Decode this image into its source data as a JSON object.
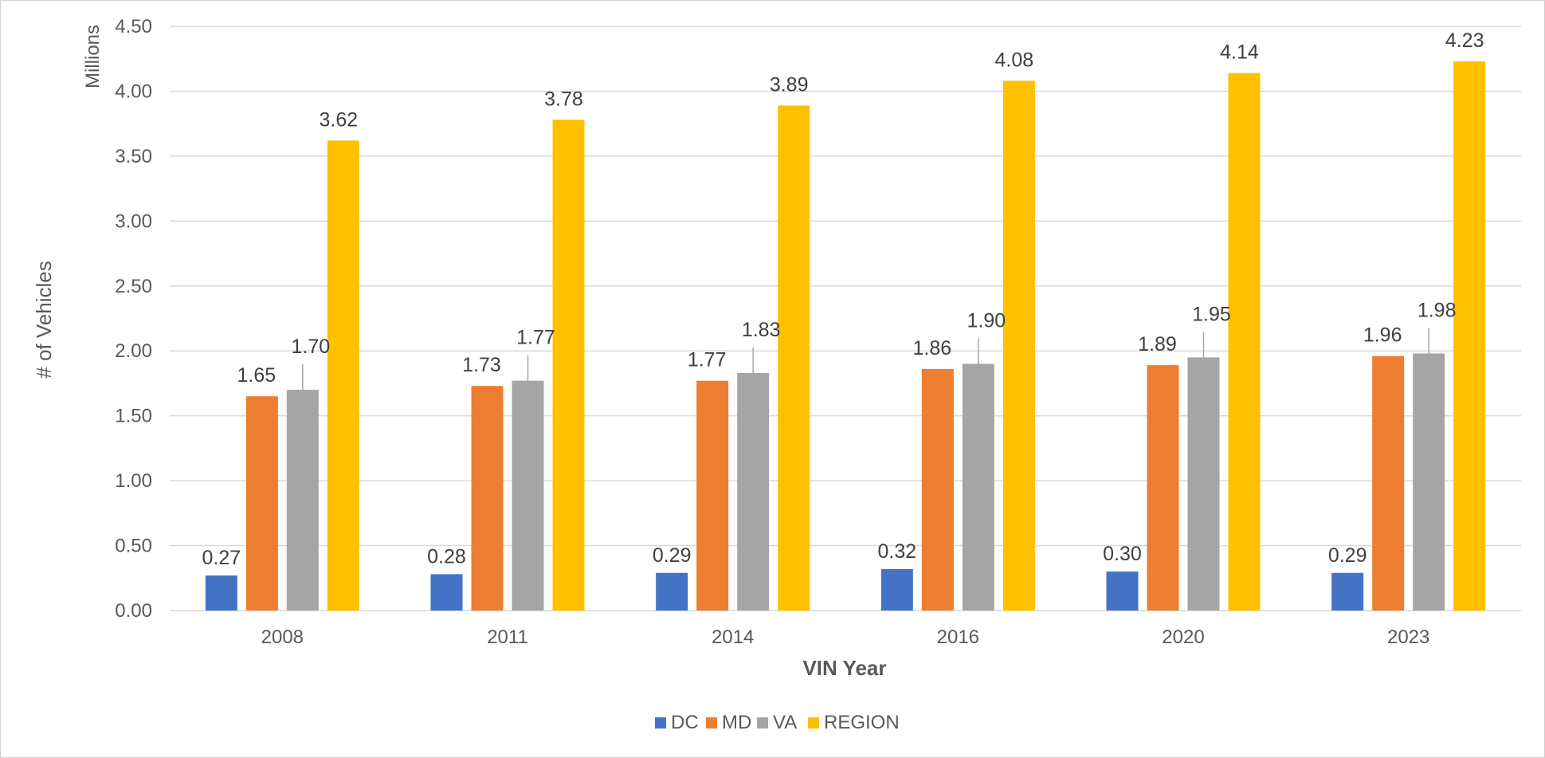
{
  "chart_data": {
    "type": "bar",
    "categories": [
      "2008",
      "2011",
      "2014",
      "2016",
      "2020",
      "2023"
    ],
    "series": [
      {
        "name": "DC",
        "color": "#4472C4",
        "values": [
          0.27,
          0.28,
          0.29,
          0.32,
          0.3,
          0.29
        ]
      },
      {
        "name": "MD",
        "color": "#ED7D31",
        "values": [
          1.65,
          1.73,
          1.77,
          1.86,
          1.89,
          1.96
        ]
      },
      {
        "name": "VA",
        "color": "#A5A5A5",
        "values": [
          1.7,
          1.77,
          1.83,
          1.9,
          1.95,
          1.98
        ]
      },
      {
        "name": "REGION",
        "color": "#FFC000",
        "values": [
          3.62,
          3.78,
          3.89,
          4.08,
          4.14,
          4.23
        ]
      }
    ],
    "data_labels": [
      [
        "0.27",
        "0.28",
        "0.29",
        "0.32",
        "0.30",
        "0.29"
      ],
      [
        "1.65",
        "1.73",
        "1.77",
        "1.86",
        "1.89",
        "1.96"
      ],
      [
        "1.70",
        "1.77",
        "1.83",
        "1.90",
        "1.95",
        "1.98"
      ],
      [
        "3.62",
        "3.78",
        "3.89",
        "4.08",
        "4.14",
        "4.23"
      ]
    ],
    "xlabel": "VIN Year",
    "ylabel": "# of Vehicles",
    "y_unit_label": "Millions",
    "ylim": [
      0,
      4.5
    ],
    "y_ticks": [
      "0.00",
      "0.50",
      "1.00",
      "1.50",
      "2.00",
      "2.50",
      "3.00",
      "3.50",
      "4.00",
      "4.50"
    ],
    "grid": true,
    "legend_position": "bottom",
    "gridline_color": "#D9D9D9"
  }
}
